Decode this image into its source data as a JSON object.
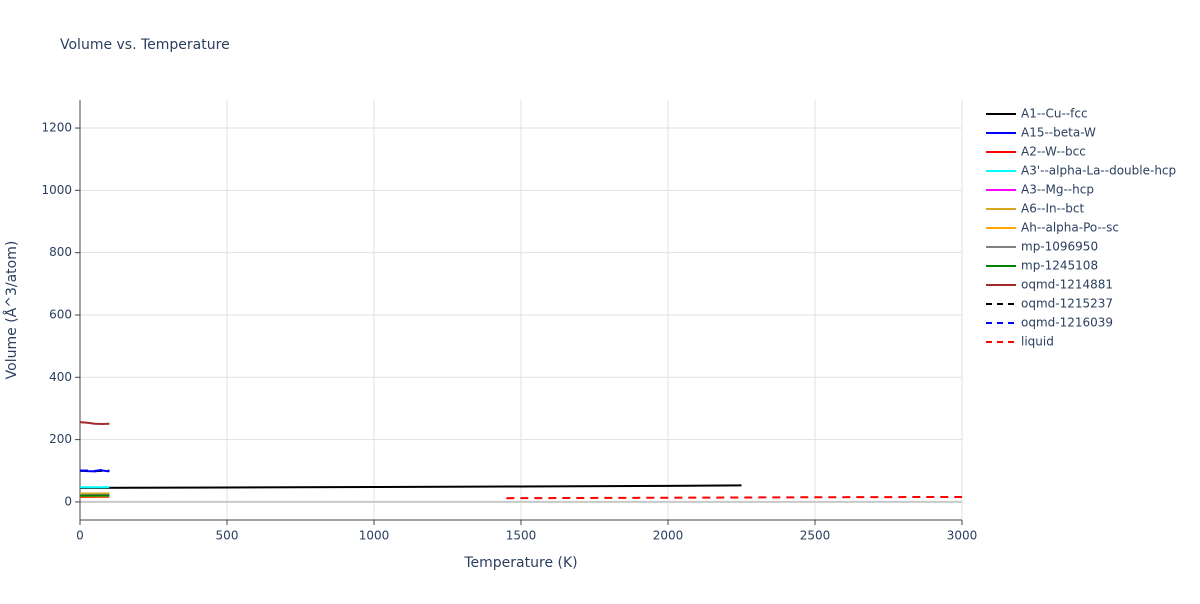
{
  "chart_data": {
    "type": "line",
    "title": "Volume vs. Temperature",
    "x_label": "Temperature (K)",
    "y_label": "Volume (Å^3/atom)",
    "xlim": [
      0,
      3000
    ],
    "xticks": [
      0,
      500,
      1000,
      1500,
      2000,
      2500,
      3000
    ],
    "ylim": [
      -58,
      1290
    ],
    "yticks": [
      0,
      200,
      400,
      600,
      800,
      1000,
      1200
    ],
    "grid": true,
    "legend": "right",
    "series": [
      {
        "name": "A1--Cu--fcc",
        "color": "#000000",
        "x": [
          0,
          500,
          1000,
          1500,
          2000,
          2250
        ],
        "values": [
          45,
          46.5,
          48,
          49.5,
          51.5,
          53
        ]
      },
      {
        "name": "A15--beta-W",
        "color": "#0000ff",
        "x": [
          0,
          25,
          50,
          75,
          100
        ],
        "values": [
          101,
          99,
          98,
          101,
          98
        ]
      },
      {
        "name": "A2--W--bcc",
        "color": "#ff0000",
        "x": [
          0,
          50,
          100
        ],
        "values": [
          16,
          16.2,
          16.5
        ]
      },
      {
        "name": "A3'--alpha-La--double-hcp",
        "color": "#00ffff",
        "x": [
          0,
          50,
          100
        ],
        "values": [
          47,
          47.2,
          47.5
        ]
      },
      {
        "name": "A3--Mg--hcp",
        "color": "#ff00ff",
        "x": [
          0,
          50,
          100
        ],
        "values": [
          23,
          23.1,
          23.3
        ]
      },
      {
        "name": "A6--In--bct",
        "color": "#daa520",
        "x": [
          0,
          50,
          100
        ],
        "values": [
          27,
          27.2,
          27.5
        ]
      },
      {
        "name": "Ah--alpha-Po--sc",
        "color": "#ffa500",
        "x": [
          0,
          50,
          100
        ],
        "values": [
          18,
          18.2,
          18.5
        ]
      },
      {
        "name": "mp-1096950",
        "color": "#808080",
        "x": [
          0,
          50,
          100
        ],
        "values": [
          22,
          22.1,
          22.3
        ]
      },
      {
        "name": "mp-1245108",
        "color": "#008000",
        "x": [
          0,
          50,
          100
        ],
        "values": [
          20,
          20.1,
          20.3
        ]
      },
      {
        "name": "oqmd-1214881",
        "color": "#a52a2a",
        "x": [
          0,
          25,
          50,
          75,
          100
        ],
        "values": [
          256,
          254,
          251,
          250,
          251
        ]
      },
      {
        "name": "oqmd-1215237",
        "color": "#000000",
        "dash": "dash",
        "x": [
          0,
          50,
          100
        ],
        "values": [
          100,
          99.5,
          100
        ]
      },
      {
        "name": "oqmd-1216039",
        "color": "#0000ff",
        "dash": "dash",
        "x": [
          0,
          25,
          50,
          75,
          100
        ],
        "values": [
          100,
          101,
          99,
          103,
          100
        ]
      },
      {
        "name": "liquid",
        "color": "#ff0000",
        "dash": "dash",
        "x": [
          1450,
          2000,
          2500,
          3000
        ],
        "values": [
          12,
          13.5,
          15,
          16
        ]
      }
    ]
  }
}
